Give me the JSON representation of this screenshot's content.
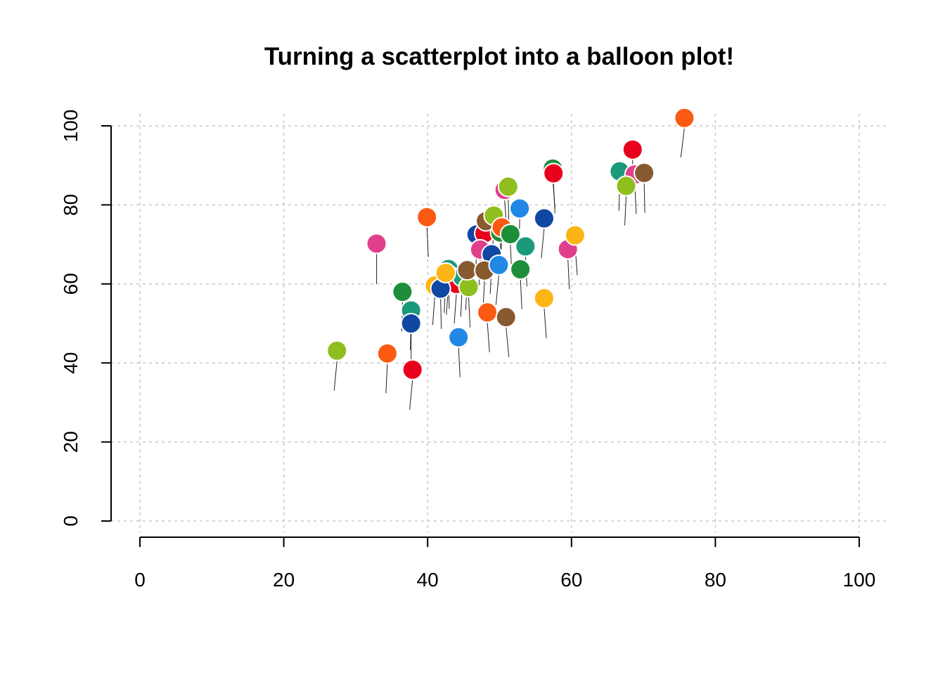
{
  "chart_data": {
    "type": "scatter",
    "title": "Turning a scatterplot into a balloon plot!",
    "xlabel": "",
    "ylabel": "",
    "xlim": [
      0,
      100
    ],
    "ylim": [
      0,
      100
    ],
    "x_ticks": [
      "0",
      "20",
      "40",
      "60",
      "80",
      "100"
    ],
    "y_ticks": [
      "0",
      "20",
      "40",
      "60",
      "80",
      "100"
    ],
    "grid": true,
    "legend": "none",
    "string_color": "#222222",
    "balloon_edge_color": "#ffffff",
    "points": [
      {
        "x": 27.4,
        "y": 43.1,
        "base_x": 27.0,
        "base_y": 33.0,
        "color": "#8fbe1f"
      },
      {
        "x": 32.9,
        "y": 70.2,
        "base_x": 32.9,
        "base_y": 60.0,
        "color": "#e0408b"
      },
      {
        "x": 34.4,
        "y": 42.4,
        "base_x": 34.2,
        "base_y": 32.3,
        "color": "#fb5a13"
      },
      {
        "x": 36.5,
        "y": 58.0,
        "base_x": 36.4,
        "base_y": 48.0,
        "color": "#1e8e3a"
      },
      {
        "x": 37.7,
        "y": 53.3,
        "base_x": 37.6,
        "base_y": 43.3,
        "color": "#1b9a7b"
      },
      {
        "x": 37.7,
        "y": 50.0,
        "base_x": 37.7,
        "base_y": 40.0,
        "color": "#0f47a3"
      },
      {
        "x": 37.9,
        "y": 38.3,
        "base_x": 37.5,
        "base_y": 28.2,
        "color": "#e8001c"
      },
      {
        "x": 39.9,
        "y": 76.9,
        "base_x": 40.1,
        "base_y": 66.8,
        "color": "#fb5a13"
      },
      {
        "x": 41.0,
        "y": 59.6,
        "base_x": 40.7,
        "base_y": 49.6,
        "color": "#fdb515"
      },
      {
        "x": 42.9,
        "y": 63.8,
        "base_x": 43.0,
        "base_y": 53.7,
        "color": "#1b9a7b"
      },
      {
        "x": 42.9,
        "y": 62.2,
        "base_x": 42.6,
        "base_y": 52.2,
        "color": "#2288e5"
      },
      {
        "x": 44.0,
        "y": 60.0,
        "base_x": 43.7,
        "base_y": 50.0,
        "color": "#e8001c"
      },
      {
        "x": 44.8,
        "y": 61.8,
        "base_x": 44.6,
        "base_y": 51.7,
        "color": "#1b9a7b"
      },
      {
        "x": 41.8,
        "y": 58.8,
        "base_x": 41.9,
        "base_y": 48.6,
        "color": "#0f47a3"
      },
      {
        "x": 42.5,
        "y": 62.8,
        "base_x": 42.3,
        "base_y": 52.7,
        "color": "#fdb515"
      },
      {
        "x": 44.3,
        "y": 46.5,
        "base_x": 44.5,
        "base_y": 36.4,
        "color": "#2288e5"
      },
      {
        "x": 45.7,
        "y": 59.2,
        "base_x": 45.9,
        "base_y": 49.0,
        "color": "#8fbe1f"
      },
      {
        "x": 45.5,
        "y": 63.5,
        "base_x": 45.3,
        "base_y": 53.4,
        "color": "#875a2f"
      },
      {
        "x": 46.8,
        "y": 72.5,
        "base_x": 46.7,
        "base_y": 62.4,
        "color": "#0f47a3"
      },
      {
        "x": 47.9,
        "y": 72.8,
        "base_x": 47.8,
        "base_y": 62.6,
        "color": "#e8001c"
      },
      {
        "x": 47.3,
        "y": 68.7,
        "base_x": 47.1,
        "base_y": 58.6,
        "color": "#e0408b"
      },
      {
        "x": 48.1,
        "y": 75.9,
        "base_x": 48.0,
        "base_y": 65.8,
        "color": "#875a2f"
      },
      {
        "x": 49.2,
        "y": 77.3,
        "base_x": 49.0,
        "base_y": 67.2,
        "color": "#8fbe1f"
      },
      {
        "x": 48.9,
        "y": 67.5,
        "base_x": 48.7,
        "base_y": 57.5,
        "color": "#0f47a3"
      },
      {
        "x": 47.9,
        "y": 63.4,
        "base_x": 47.7,
        "base_y": 53.3,
        "color": "#875a2f"
      },
      {
        "x": 48.3,
        "y": 52.8,
        "base_x": 48.6,
        "base_y": 42.7,
        "color": "#fb5a13"
      },
      {
        "x": 49.9,
        "y": 64.8,
        "base_x": 49.5,
        "base_y": 54.7,
        "color": "#2288e5"
      },
      {
        "x": 50.1,
        "y": 73.0,
        "base_x": 50.4,
        "base_y": 62.9,
        "color": "#1e8e3a"
      },
      {
        "x": 50.3,
        "y": 74.3,
        "base_x": 50.1,
        "base_y": 64.2,
        "color": "#fb5a13"
      },
      {
        "x": 51.5,
        "y": 72.6,
        "base_x": 51.7,
        "base_y": 62.4,
        "color": "#1e8e3a"
      },
      {
        "x": 50.7,
        "y": 83.8,
        "base_x": 51.0,
        "base_y": 73.8,
        "color": "#e0408b"
      },
      {
        "x": 51.2,
        "y": 84.6,
        "base_x": 51.3,
        "base_y": 74.6,
        "color": "#8fbe1f"
      },
      {
        "x": 52.8,
        "y": 79.1,
        "base_x": 52.7,
        "base_y": 69.0,
        "color": "#2288e5"
      },
      {
        "x": 50.9,
        "y": 51.6,
        "base_x": 51.3,
        "base_y": 41.5,
        "color": "#875a2f"
      },
      {
        "x": 52.9,
        "y": 63.7,
        "base_x": 53.1,
        "base_y": 53.6,
        "color": "#1e8e3a"
      },
      {
        "x": 53.6,
        "y": 69.5,
        "base_x": 53.8,
        "base_y": 59.4,
        "color": "#1b9a7b"
      },
      {
        "x": 56.2,
        "y": 76.6,
        "base_x": 55.8,
        "base_y": 66.5,
        "color": "#0f47a3"
      },
      {
        "x": 56.2,
        "y": 56.4,
        "base_x": 56.5,
        "base_y": 46.3,
        "color": "#fdb515"
      },
      {
        "x": 57.4,
        "y": 89.2,
        "base_x": 57.7,
        "base_y": 79.1,
        "color": "#1e8e3a"
      },
      {
        "x": 57.5,
        "y": 88.0,
        "base_x": 57.7,
        "base_y": 77.9,
        "color": "#e8001c"
      },
      {
        "x": 59.5,
        "y": 68.8,
        "base_x": 59.7,
        "base_y": 58.7,
        "color": "#e0408b"
      },
      {
        "x": 60.5,
        "y": 72.3,
        "base_x": 60.8,
        "base_y": 62.2,
        "color": "#fdb515"
      },
      {
        "x": 66.7,
        "y": 88.5,
        "base_x": 66.6,
        "base_y": 78.5,
        "color": "#1b9a7b"
      },
      {
        "x": 68.5,
        "y": 94.0,
        "base_x": 68.5,
        "base_y": 83.9,
        "color": "#e8001c"
      },
      {
        "x": 68.8,
        "y": 87.7,
        "base_x": 69.0,
        "base_y": 77.7,
        "color": "#e0408b"
      },
      {
        "x": 70.1,
        "y": 88.1,
        "base_x": 70.2,
        "base_y": 78.0,
        "color": "#875a2f"
      },
      {
        "x": 67.6,
        "y": 84.8,
        "base_x": 67.4,
        "base_y": 74.8,
        "color": "#8fbe1f"
      },
      {
        "x": 75.7,
        "y": 102.0,
        "base_x": 75.2,
        "base_y": 92.0,
        "color": "#fb5a13"
      }
    ]
  }
}
